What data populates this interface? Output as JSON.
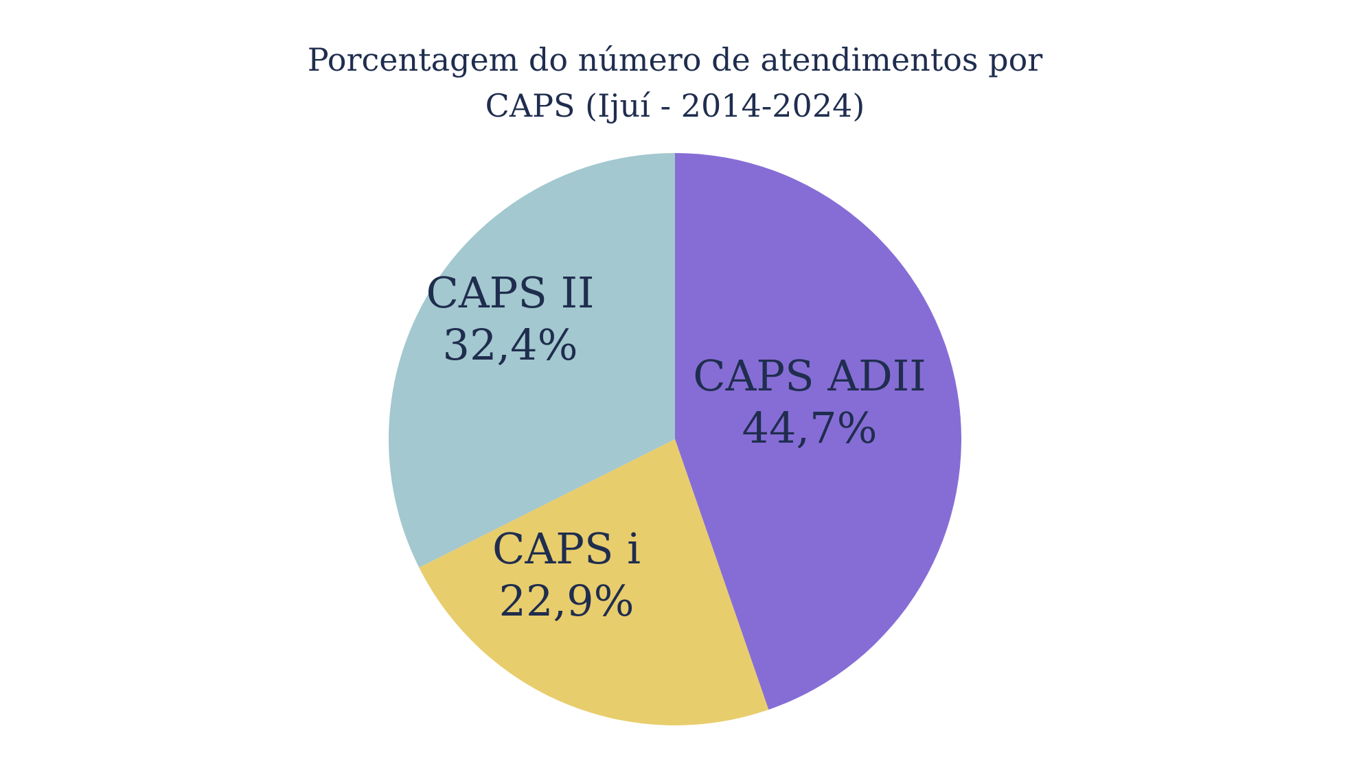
{
  "chart_data": {
    "type": "pie",
    "title_lines": [
      "Porcentagem do número de atendimentos por",
      "CAPS (Ijuí - 2014-2024)"
    ],
    "start_angle_deg": 0,
    "direction": "clockwise",
    "slices": [
      {
        "category": "CAPS ADII",
        "value_label": "44,7%",
        "value": 44.7,
        "color": "#866dd6"
      },
      {
        "category": "CAPS i",
        "value_label": "22,9%",
        "value": 22.9,
        "color": "#e8cd6d"
      },
      {
        "category": "CAPS II",
        "value_label": "32,4%",
        "value": 32.4,
        "color": "#a3c8cf"
      }
    ],
    "label_color": "#1f2d4e",
    "legend": "none"
  }
}
